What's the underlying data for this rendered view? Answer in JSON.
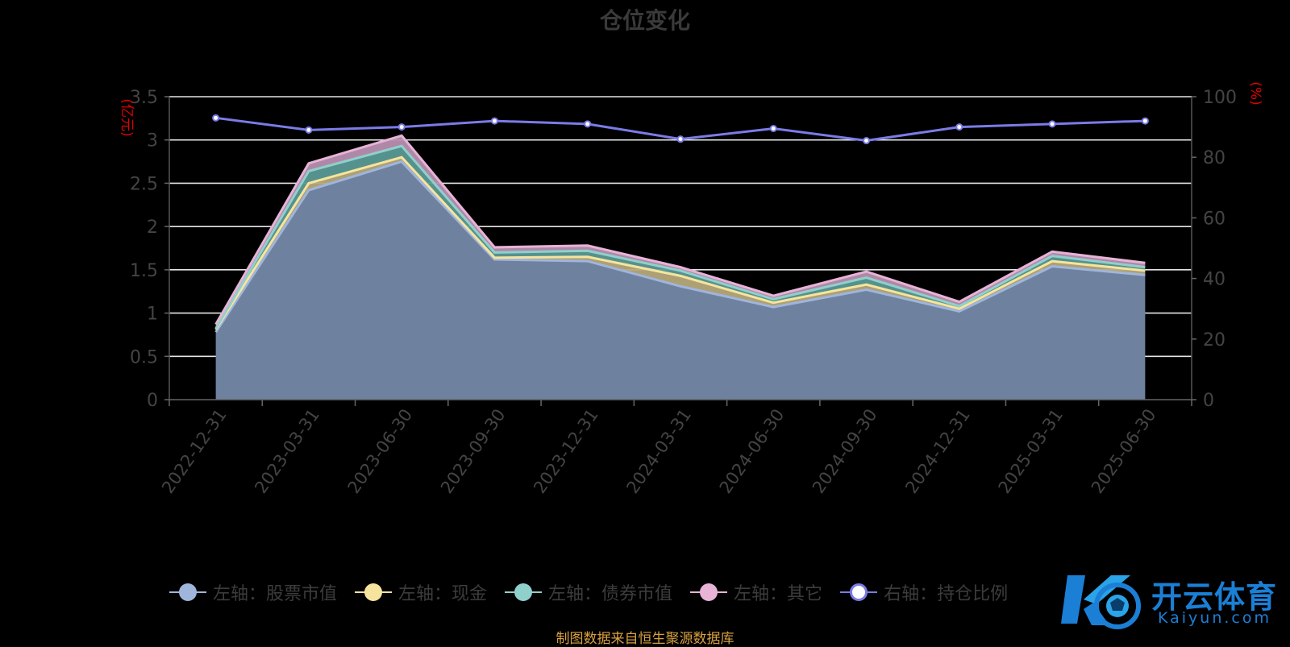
{
  "chart_data": {
    "type": "area",
    "title": "仓位变化",
    "ylabel_left": "(亿元)",
    "ylabel_right": "(%)",
    "ylim_left": [
      0,
      3.5
    ],
    "yticks_left": [
      "0",
      "0.5",
      "1",
      "1.5",
      "2",
      "2.5",
      "3",
      "3.5"
    ],
    "ylim_right": [
      0,
      100
    ],
    "yticks_right": [
      "0",
      "20",
      "40",
      "60",
      "80",
      "100"
    ],
    "stacked": true,
    "categories": [
      "2022-12-31",
      "2023-03-31",
      "2023-06-30",
      "2023-09-30",
      "2023-12-31",
      "2024-03-31",
      "2024-06-30",
      "2024-09-30",
      "2024-12-31",
      "2025-03-31",
      "2025-06-30"
    ],
    "series": [
      {
        "name": "左轴：股票市值",
        "axis": "left",
        "color": "#9fb5dc",
        "values": [
          0.78,
          2.42,
          2.75,
          1.62,
          1.6,
          1.31,
          1.07,
          1.27,
          1.02,
          1.54,
          1.44
        ]
      },
      {
        "name": "左轴：现金",
        "axis": "left",
        "color": "#f6e49e",
        "values": [
          0.03,
          0.08,
          0.05,
          0.02,
          0.05,
          0.12,
          0.05,
          0.06,
          0.03,
          0.06,
          0.05
        ]
      },
      {
        "name": "左轴：债券市值",
        "axis": "left",
        "color": "#8fd0cc",
        "values": [
          0.01,
          0.14,
          0.13,
          0.06,
          0.07,
          0.06,
          0.04,
          0.08,
          0.03,
          0.06,
          0.04
        ]
      },
      {
        "name": "左轴：其它",
        "axis": "left",
        "color": "#e7b3d7",
        "values": [
          0.05,
          0.09,
          0.12,
          0.06,
          0.06,
          0.04,
          0.04,
          0.07,
          0.05,
          0.05,
          0.05
        ]
      },
      {
        "name": "右轴：持仓比例",
        "axis": "right",
        "color": "#7b7be8",
        "values": [
          93,
          89,
          90,
          92,
          91,
          86,
          89.5,
          85.5,
          90,
          91,
          92
        ]
      }
    ],
    "grid": true,
    "legend_position": "bottom"
  },
  "footer": {
    "source_text": "制图数据来自恒生聚源数据库"
  },
  "watermark": {
    "brand_cn": "开云体育",
    "brand_en": "Kaiyun.com"
  },
  "colors": {
    "grid": "#e6e6e6",
    "axis_label": "#e00000",
    "tick_text": "#444444",
    "title": "#3a3a3a"
  }
}
